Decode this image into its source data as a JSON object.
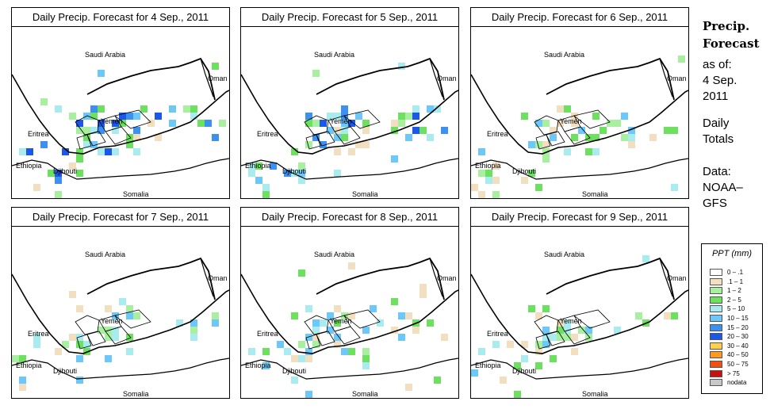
{
  "panels": [
    {
      "title": "Daily Precip. Forecast for  4 Sep., 2011"
    },
    {
      "title": "Daily Precip. Forecast for  5 Sep., 2011"
    },
    {
      "title": "Daily Precip. Forecast for  6 Sep., 2011"
    },
    {
      "title": "Daily Precip. Forecast for  7 Sep., 2011"
    },
    {
      "title": "Daily Precip. Forecast for  8 Sep., 2011"
    },
    {
      "title": "Daily Precip. Forecast for  9 Sep., 2011"
    }
  ],
  "map_labels": {
    "saudi": "Saudi Arabia",
    "oman": "Oman",
    "yemen": "Yemen",
    "eritrea": "Eritrea",
    "ethiopia": "Ethiopia",
    "djibouti": "Djibouti",
    "somalia": "Somalia"
  },
  "side": {
    "title_line1": "Precip.",
    "title_line2": "Forecast",
    "asof": "as of:",
    "date_line1": "4 Sep.",
    "date_line2": "2011",
    "daily_line1": "Daily",
    "daily_line2": "Totals",
    "data_line1": "Data:",
    "data_line2": "NOAA–",
    "data_line3": "GFS"
  },
  "legend": {
    "title": "PPT (mm)",
    "items": [
      {
        "label": "0 – .1",
        "color": "#ffffff"
      },
      {
        "label": ".1 – 1",
        "color": "#f2dfc0"
      },
      {
        "label": "1 – 2",
        "color": "#a8f0a0"
      },
      {
        "label": "2 – 5",
        "color": "#6ee060"
      },
      {
        "label": "5 – 10",
        "color": "#a8ecf0"
      },
      {
        "label": "10 – 15",
        "color": "#6cc8f8"
      },
      {
        "label": "15 – 20",
        "color": "#3c90f0"
      },
      {
        "label": "20 – 30",
        "color": "#1c58e8"
      },
      {
        "label": "30 – 40",
        "color": "#ffd050"
      },
      {
        "label": "40 – 50",
        "color": "#ff9a20"
      },
      {
        "label": "50 – 75",
        "color": "#f05010"
      },
      {
        "label": "> 75",
        "color": "#c81010"
      },
      {
        "label": "nodata",
        "color": "#c8c8c8"
      }
    ]
  }
}
